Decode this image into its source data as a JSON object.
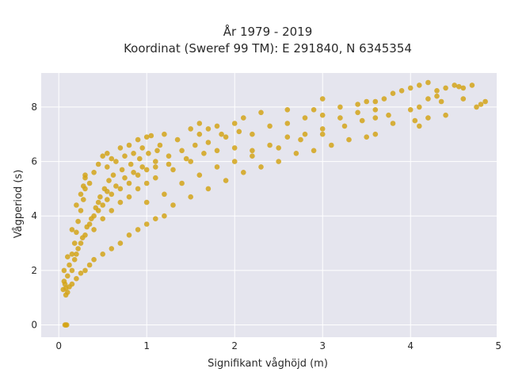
{
  "chart_data": {
    "type": "scatter",
    "title_line1": "År 1979 - 2019",
    "title_line2": "Koordinat (Sweref 99 TM): E 291840, N 6345354",
    "xlabel": "Signifikant våghöjd (m)",
    "ylabel": "Vågperiod (s)",
    "xlim": [
      -0.2,
      4.98
    ],
    "ylim": [
      -0.45,
      9.25
    ],
    "x_ticks": [
      0,
      1,
      2,
      3,
      4,
      5
    ],
    "y_ticks": [
      0,
      2,
      4,
      6,
      8
    ],
    "x_tick_labels": [
      "0",
      "1",
      "2",
      "3",
      "4",
      "5"
    ],
    "y_tick_labels": [
      "0",
      "2",
      "4",
      "6",
      "8"
    ],
    "grid": true,
    "legend": "none",
    "colors": {
      "points": "#D4A419",
      "plot_bg": "#E5E5EE",
      "grid": "#FFFFFF",
      "text": "#2A2A2A"
    },
    "points": [
      [
        0.07,
        0.0
      ],
      [
        0.08,
        0.0
      ],
      [
        0.09,
        0.0
      ],
      [
        0.05,
        1.3
      ],
      [
        0.07,
        1.5
      ],
      [
        0.08,
        1.1
      ],
      [
        0.1,
        1.8
      ],
      [
        0.12,
        2.2
      ],
      [
        0.15,
        2.6
      ],
      [
        0.18,
        3.0
      ],
      [
        0.2,
        3.4
      ],
      [
        0.22,
        3.8
      ],
      [
        0.25,
        4.2
      ],
      [
        0.28,
        4.6
      ],
      [
        0.3,
        5.0
      ],
      [
        0.3,
        5.4
      ],
      [
        0.35,
        5.2
      ],
      [
        0.4,
        5.6
      ],
      [
        0.45,
        5.9
      ],
      [
        0.5,
        6.2
      ],
      [
        0.55,
        6.3
      ],
      [
        0.6,
        6.1
      ],
      [
        0.7,
        6.5
      ],
      [
        0.8,
        6.6
      ],
      [
        0.9,
        6.8
      ],
      [
        1.0,
        6.9
      ],
      [
        1.05,
        6.95
      ],
      [
        1.2,
        7.0
      ],
      [
        1.5,
        7.2
      ],
      [
        1.6,
        7.4
      ],
      [
        1.7,
        7.2
      ],
      [
        1.8,
        7.3
      ],
      [
        2.0,
        7.4
      ],
      [
        2.1,
        7.6
      ],
      [
        2.3,
        7.8
      ],
      [
        2.6,
        7.9
      ],
      [
        2.9,
        7.9
      ],
      [
        3.0,
        8.3
      ],
      [
        3.2,
        8.0
      ],
      [
        3.4,
        8.1
      ],
      [
        3.5,
        8.2
      ],
      [
        3.6,
        8.2
      ],
      [
        3.7,
        8.3
      ],
      [
        3.8,
        8.5
      ],
      [
        3.9,
        8.6
      ],
      [
        4.0,
        8.7
      ],
      [
        4.1,
        8.8
      ],
      [
        4.2,
        8.9
      ],
      [
        4.3,
        8.6
      ],
      [
        4.35,
        8.2
      ],
      [
        4.4,
        8.7
      ],
      [
        4.5,
        8.8
      ],
      [
        4.55,
        8.75
      ],
      [
        4.6,
        8.7
      ],
      [
        4.7,
        8.8
      ],
      [
        4.8,
        8.1
      ],
      [
        4.85,
        8.2
      ],
      [
        4.6,
        8.3
      ],
      [
        4.75,
        8.0
      ],
      [
        4.0,
        7.9
      ],
      [
        4.1,
        8.0
      ],
      [
        4.2,
        8.3
      ],
      [
        4.3,
        8.4
      ],
      [
        4.4,
        7.7
      ],
      [
        4.2,
        7.6
      ],
      [
        4.1,
        7.3
      ],
      [
        4.05,
        7.5
      ],
      [
        3.8,
        7.4
      ],
      [
        3.6,
        7.0
      ],
      [
        3.5,
        6.9
      ],
      [
        3.3,
        6.8
      ],
      [
        3.1,
        6.6
      ],
      [
        2.9,
        6.4
      ],
      [
        2.7,
        6.3
      ],
      [
        2.5,
        6.0
      ],
      [
        2.3,
        5.8
      ],
      [
        2.1,
        5.6
      ],
      [
        1.9,
        5.3
      ],
      [
        1.7,
        5.0
      ],
      [
        1.5,
        4.7
      ],
      [
        1.3,
        4.4
      ],
      [
        1.2,
        4.0
      ],
      [
        1.1,
        3.9
      ],
      [
        1.0,
        3.7
      ],
      [
        0.9,
        3.5
      ],
      [
        0.8,
        3.3
      ],
      [
        0.7,
        3.0
      ],
      [
        0.6,
        2.8
      ],
      [
        0.5,
        2.6
      ],
      [
        0.4,
        2.4
      ],
      [
        0.35,
        2.2
      ],
      [
        0.3,
        2.0
      ],
      [
        0.25,
        1.9
      ],
      [
        0.2,
        1.7
      ],
      [
        0.15,
        1.5
      ],
      [
        0.12,
        1.4
      ],
      [
        0.1,
        1.2
      ],
      [
        0.08,
        1.35
      ],
      [
        0.06,
        1.6
      ],
      [
        0.06,
        2.0
      ],
      [
        0.1,
        2.5
      ],
      [
        0.15,
        3.5
      ],
      [
        0.2,
        4.4
      ],
      [
        0.25,
        4.8
      ],
      [
        0.28,
        5.1
      ],
      [
        0.3,
        5.5
      ],
      [
        0.45,
        4.5
      ],
      [
        0.55,
        4.9
      ],
      [
        0.65,
        5.1
      ],
      [
        0.75,
        5.4
      ],
      [
        0.85,
        5.6
      ],
      [
        0.95,
        5.8
      ],
      [
        1.1,
        6.0
      ],
      [
        1.25,
        6.2
      ],
      [
        1.4,
        6.4
      ],
      [
        1.55,
        6.6
      ],
      [
        1.7,
        6.7
      ],
      [
        1.9,
        6.9
      ],
      [
        2.05,
        7.1
      ],
      [
        2.2,
        7.0
      ],
      [
        2.4,
        7.3
      ],
      [
        2.6,
        7.4
      ],
      [
        2.8,
        7.6
      ],
      [
        3.0,
        7.7
      ],
      [
        3.2,
        7.6
      ],
      [
        3.4,
        7.8
      ],
      [
        3.6,
        7.9
      ],
      [
        3.75,
        7.7
      ],
      [
        0.55,
        5.8
      ],
      [
        0.65,
        6.0
      ],
      [
        0.75,
        6.2
      ],
      [
        0.85,
        6.3
      ],
      [
        0.95,
        6.5
      ],
      [
        1.15,
        6.6
      ],
      [
        1.35,
        6.8
      ],
      [
        1.6,
        7.0
      ],
      [
        1.85,
        7.0
      ],
      [
        2.0,
        6.5
      ],
      [
        2.2,
        6.4
      ],
      [
        2.4,
        6.6
      ],
      [
        2.6,
        6.9
      ],
      [
        2.8,
        7.0
      ],
      [
        3.0,
        7.2
      ],
      [
        3.25,
        7.3
      ],
      [
        3.45,
        7.5
      ],
      [
        3.6,
        7.6
      ],
      [
        1.0,
        4.5
      ],
      [
        1.2,
        4.8
      ],
      [
        1.4,
        5.2
      ],
      [
        1.6,
        5.5
      ],
      [
        1.8,
        5.8
      ],
      [
        2.0,
        6.0
      ],
      [
        2.2,
        6.2
      ],
      [
        2.5,
        6.5
      ],
      [
        2.75,
        6.8
      ],
      [
        3.0,
        7.0
      ],
      [
        0.4,
        3.5
      ],
      [
        0.5,
        3.9
      ],
      [
        0.6,
        4.2
      ],
      [
        0.7,
        4.5
      ],
      [
        0.8,
        4.7
      ],
      [
        0.9,
        5.0
      ],
      [
        1.0,
        5.2
      ],
      [
        1.1,
        5.4
      ],
      [
        1.3,
        5.7
      ],
      [
        1.5,
        6.0
      ],
      [
        0.2,
        2.6
      ],
      [
        0.25,
        3.0
      ],
      [
        0.3,
        3.3
      ],
      [
        0.35,
        3.7
      ],
      [
        0.4,
        4.0
      ],
      [
        0.45,
        4.2
      ],
      [
        0.5,
        4.4
      ],
      [
        0.55,
        4.6
      ],
      [
        0.6,
        4.8
      ],
      [
        0.7,
        5.0
      ],
      [
        0.8,
        5.2
      ],
      [
        0.9,
        5.5
      ],
      [
        1.0,
        5.7
      ],
      [
        1.1,
        5.8
      ],
      [
        1.25,
        5.9
      ],
      [
        1.45,
        6.1
      ],
      [
        1.65,
        6.3
      ],
      [
        1.8,
        6.4
      ],
      [
        0.15,
        2.0
      ],
      [
        0.18,
        2.4
      ],
      [
        0.22,
        2.8
      ],
      [
        0.27,
        3.2
      ],
      [
        0.32,
        3.6
      ],
      [
        0.37,
        3.9
      ],
      [
        0.42,
        4.3
      ],
      [
        0.47,
        4.7
      ],
      [
        0.52,
        5.0
      ],
      [
        0.57,
        5.3
      ],
      [
        0.62,
        5.5
      ],
      [
        0.72,
        5.7
      ],
      [
        0.82,
        5.9
      ],
      [
        0.92,
        6.1
      ],
      [
        1.02,
        6.3
      ],
      [
        1.12,
        6.4
      ]
    ]
  }
}
